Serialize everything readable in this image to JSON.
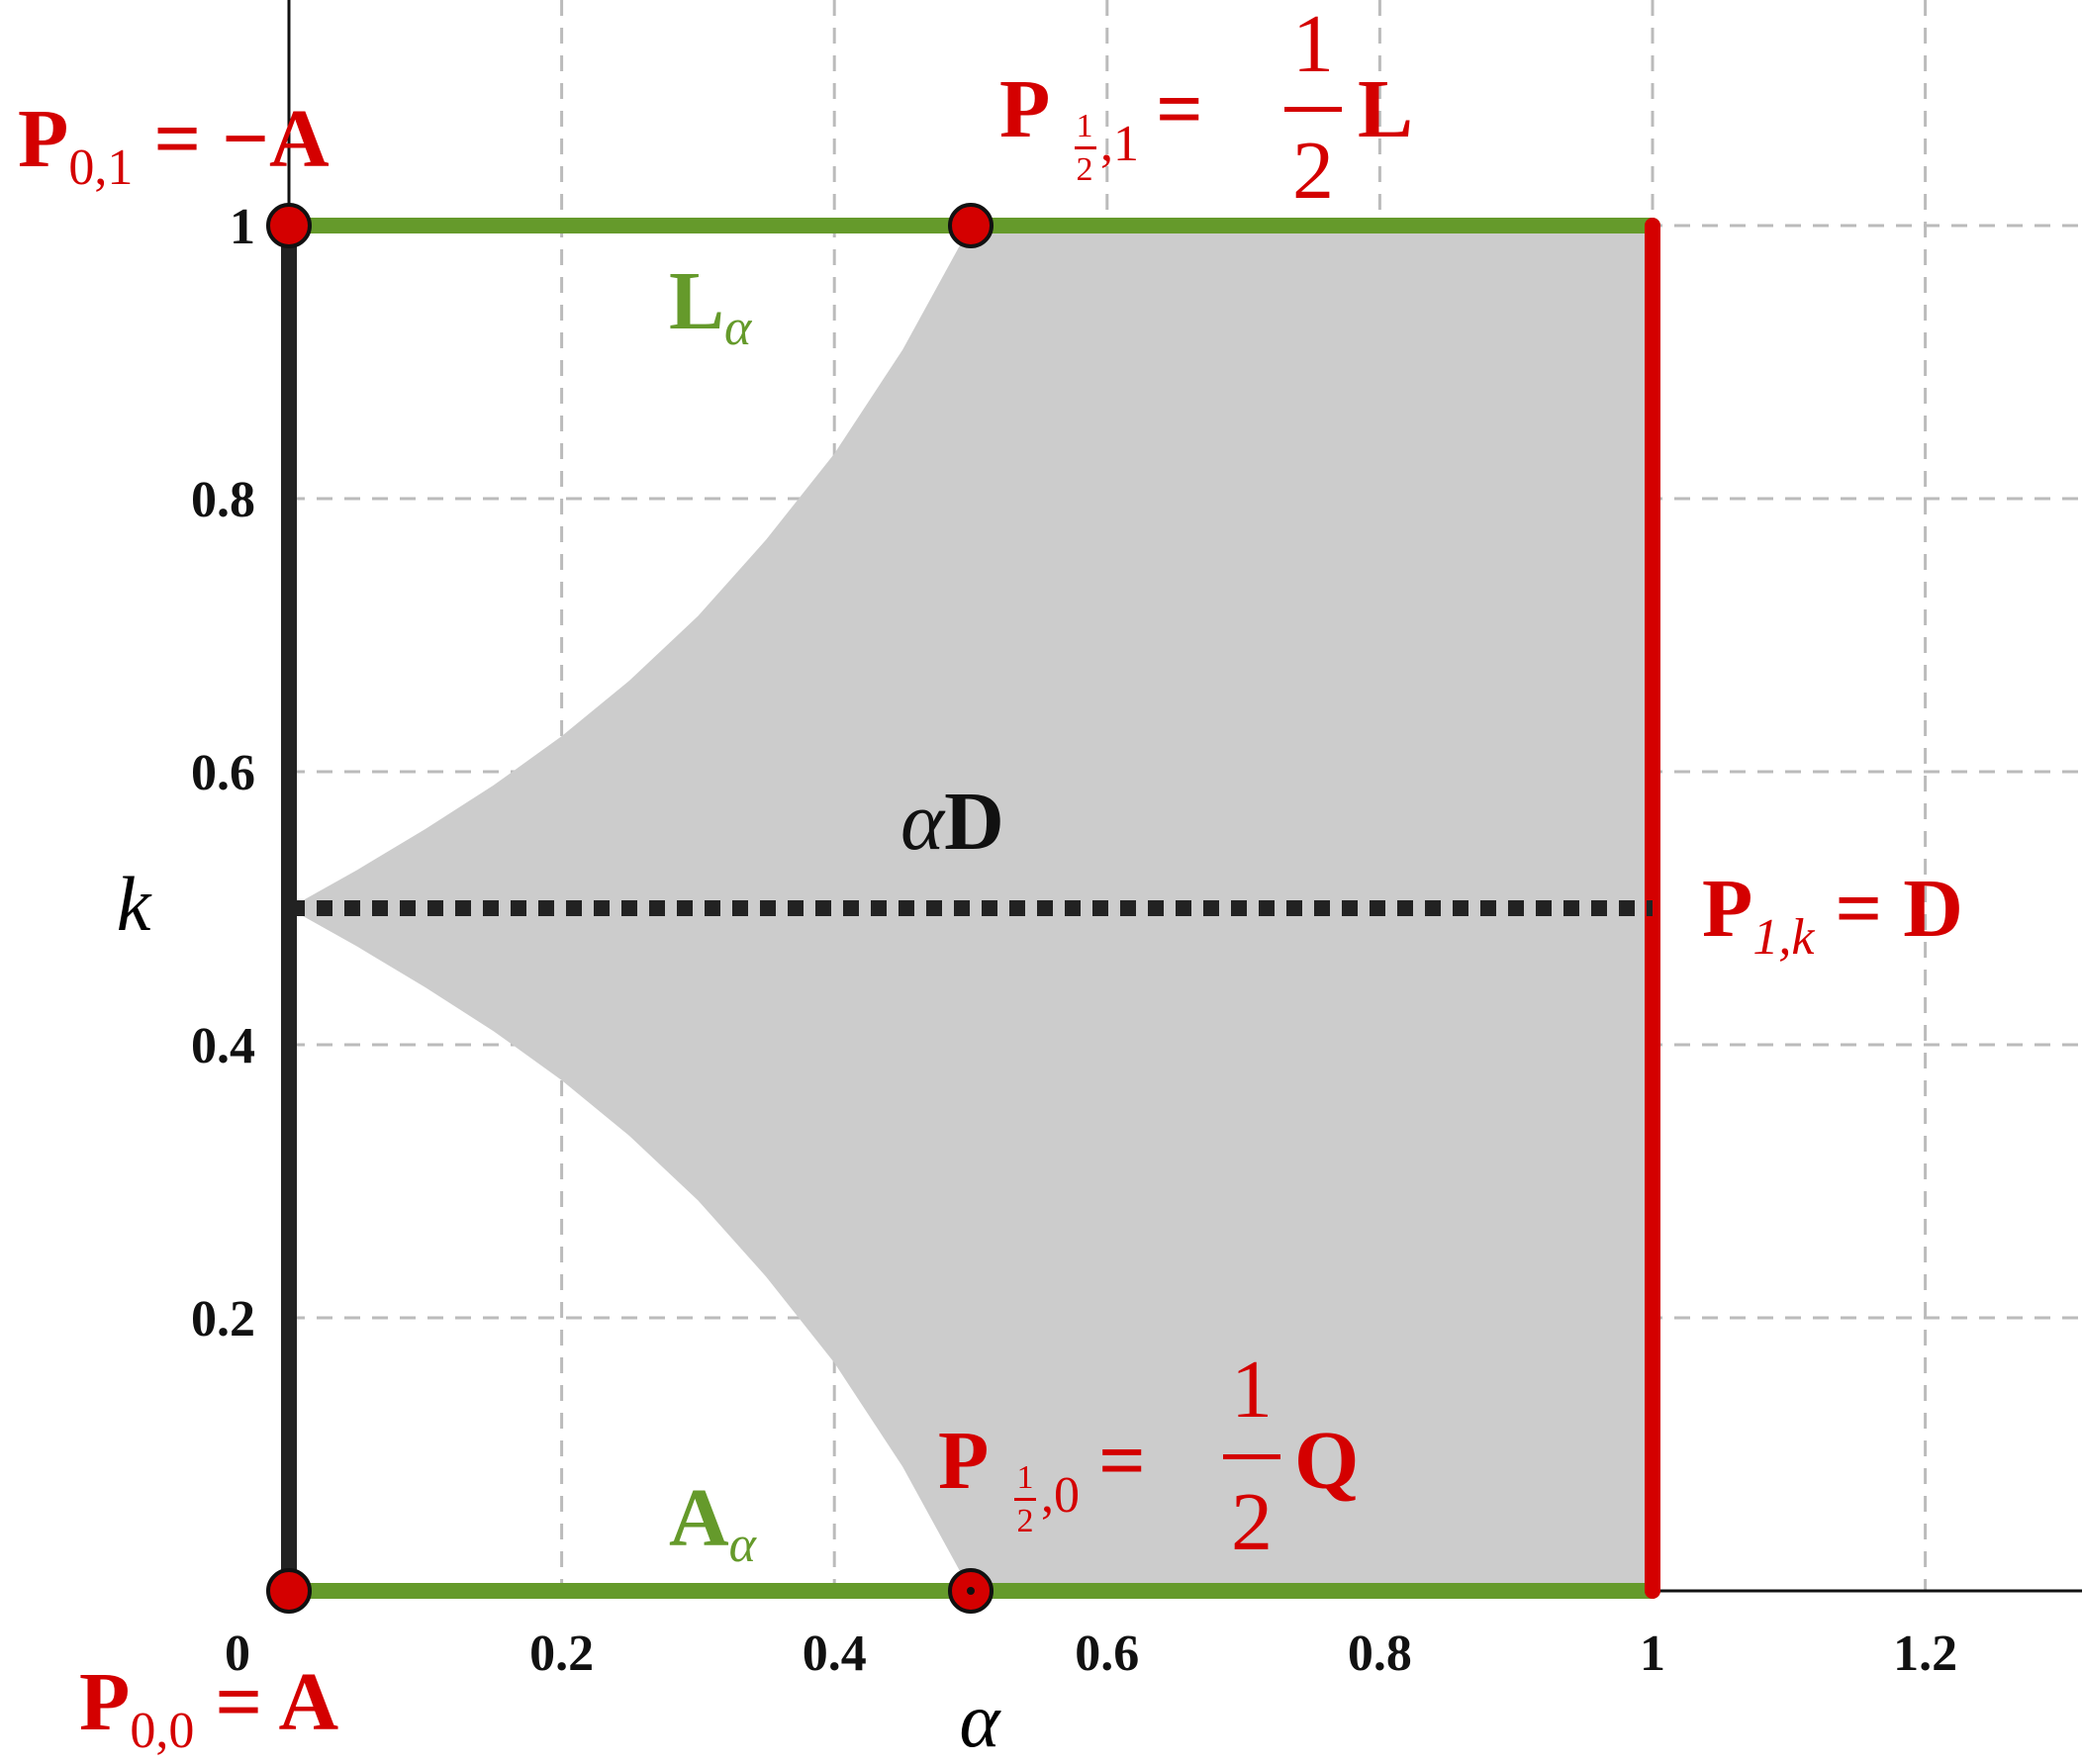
{
  "chart_data": {
    "type": "line",
    "xlabel": "α",
    "ylabel": "k",
    "xlim": [
      0,
      1.3
    ],
    "ylim": [
      0,
      1.15
    ],
    "grid": true,
    "x_ticks": [
      {
        "value": 0,
        "label": "0"
      },
      {
        "value": 0.2,
        "label": "0.2"
      },
      {
        "value": 0.4,
        "label": "0.4"
      },
      {
        "value": 0.6,
        "label": "0.6"
      },
      {
        "value": 0.8,
        "label": "0.8"
      },
      {
        "value": 1,
        "label": "1"
      },
      {
        "value": 1.2,
        "label": "1.2"
      }
    ],
    "y_ticks": [
      {
        "value": 0.2,
        "label": "0.2"
      },
      {
        "value": 0.4,
        "label": "0.4"
      },
      {
        "value": 0.6,
        "label": "0.6"
      },
      {
        "value": 0.8,
        "label": "0.8"
      },
      {
        "value": 1,
        "label": "1"
      }
    ],
    "colors": {
      "red": "#d40000",
      "green": "#659a2b",
      "black": "#222222",
      "region": "#cccccc",
      "grid": "#bbbbbb"
    },
    "region": {
      "upper_boundary": [
        [
          0,
          0.5
        ],
        [
          0.05,
          0.528
        ],
        [
          0.1,
          0.558
        ],
        [
          0.15,
          0.59
        ],
        [
          0.2,
          0.626
        ],
        [
          0.25,
          0.667
        ],
        [
          0.3,
          0.714
        ],
        [
          0.35,
          0.77
        ],
        [
          0.4,
          0.833
        ],
        [
          0.45,
          0.909
        ],
        [
          0.5,
          1
        ]
      ],
      "lower_boundary": [
        [
          0,
          0.5
        ],
        [
          0.05,
          0.472
        ],
        [
          0.1,
          0.442
        ],
        [
          0.15,
          0.41
        ],
        [
          0.2,
          0.374
        ],
        [
          0.25,
          0.333
        ],
        [
          0.3,
          0.286
        ],
        [
          0.35,
          0.23
        ],
        [
          0.4,
          0.167
        ],
        [
          0.45,
          0.091
        ],
        [
          0.5,
          0
        ]
      ],
      "right_edge": 1
    },
    "segments": [
      {
        "label": "L_α",
        "color": "green",
        "points": [
          [
            0,
            1
          ],
          [
            1,
            1
          ]
        ]
      },
      {
        "label": "A_α",
        "color": "green",
        "points": [
          [
            0,
            0
          ],
          [
            1,
            0
          ]
        ]
      },
      {
        "color": "black",
        "points": [
          [
            0,
            0
          ],
          [
            0,
            1
          ]
        ]
      },
      {
        "color": "red",
        "points": [
          [
            1,
            0
          ],
          [
            1,
            1
          ]
        ]
      },
      {
        "label": "αD",
        "color": "black",
        "style": "dotted",
        "points": [
          [
            0,
            0.5
          ],
          [
            1,
            0.5
          ]
        ]
      }
    ],
    "points": [
      {
        "x": 0,
        "y": 1
      },
      {
        "x": 0.5,
        "y": 1
      },
      {
        "x": 0,
        "y": 0
      },
      {
        "x": 0.5,
        "y": 0
      }
    ],
    "annotations": {
      "p01": {
        "main": "P",
        "sub": "0,1",
        "rest": " = −A"
      },
      "phalf1": {
        "main": "P",
        "sub_frac_num": "1",
        "sub_frac_den": "2",
        "sub_tail": ",1",
        "eq": " = ",
        "frac_num": "1",
        "frac_den": "2",
        "rest": "L"
      },
      "l_alpha": {
        "main": "L",
        "sub": "α"
      },
      "alpha_d": {
        "main": "α",
        "rest": "D"
      },
      "p1k": {
        "main": "P",
        "sub": "1,k",
        "rest": " = D"
      },
      "phalf0": {
        "main": "P",
        "sub_frac_num": "1",
        "sub_frac_den": "2",
        "sub_tail": ",0",
        "eq": " = ",
        "frac_num": "1",
        "frac_den": "2",
        "rest": "Q"
      },
      "a_alpha": {
        "main": "A",
        "sub": "α"
      },
      "p00": {
        "main": "P",
        "sub": "0,0",
        "rest": " = A"
      }
    }
  }
}
